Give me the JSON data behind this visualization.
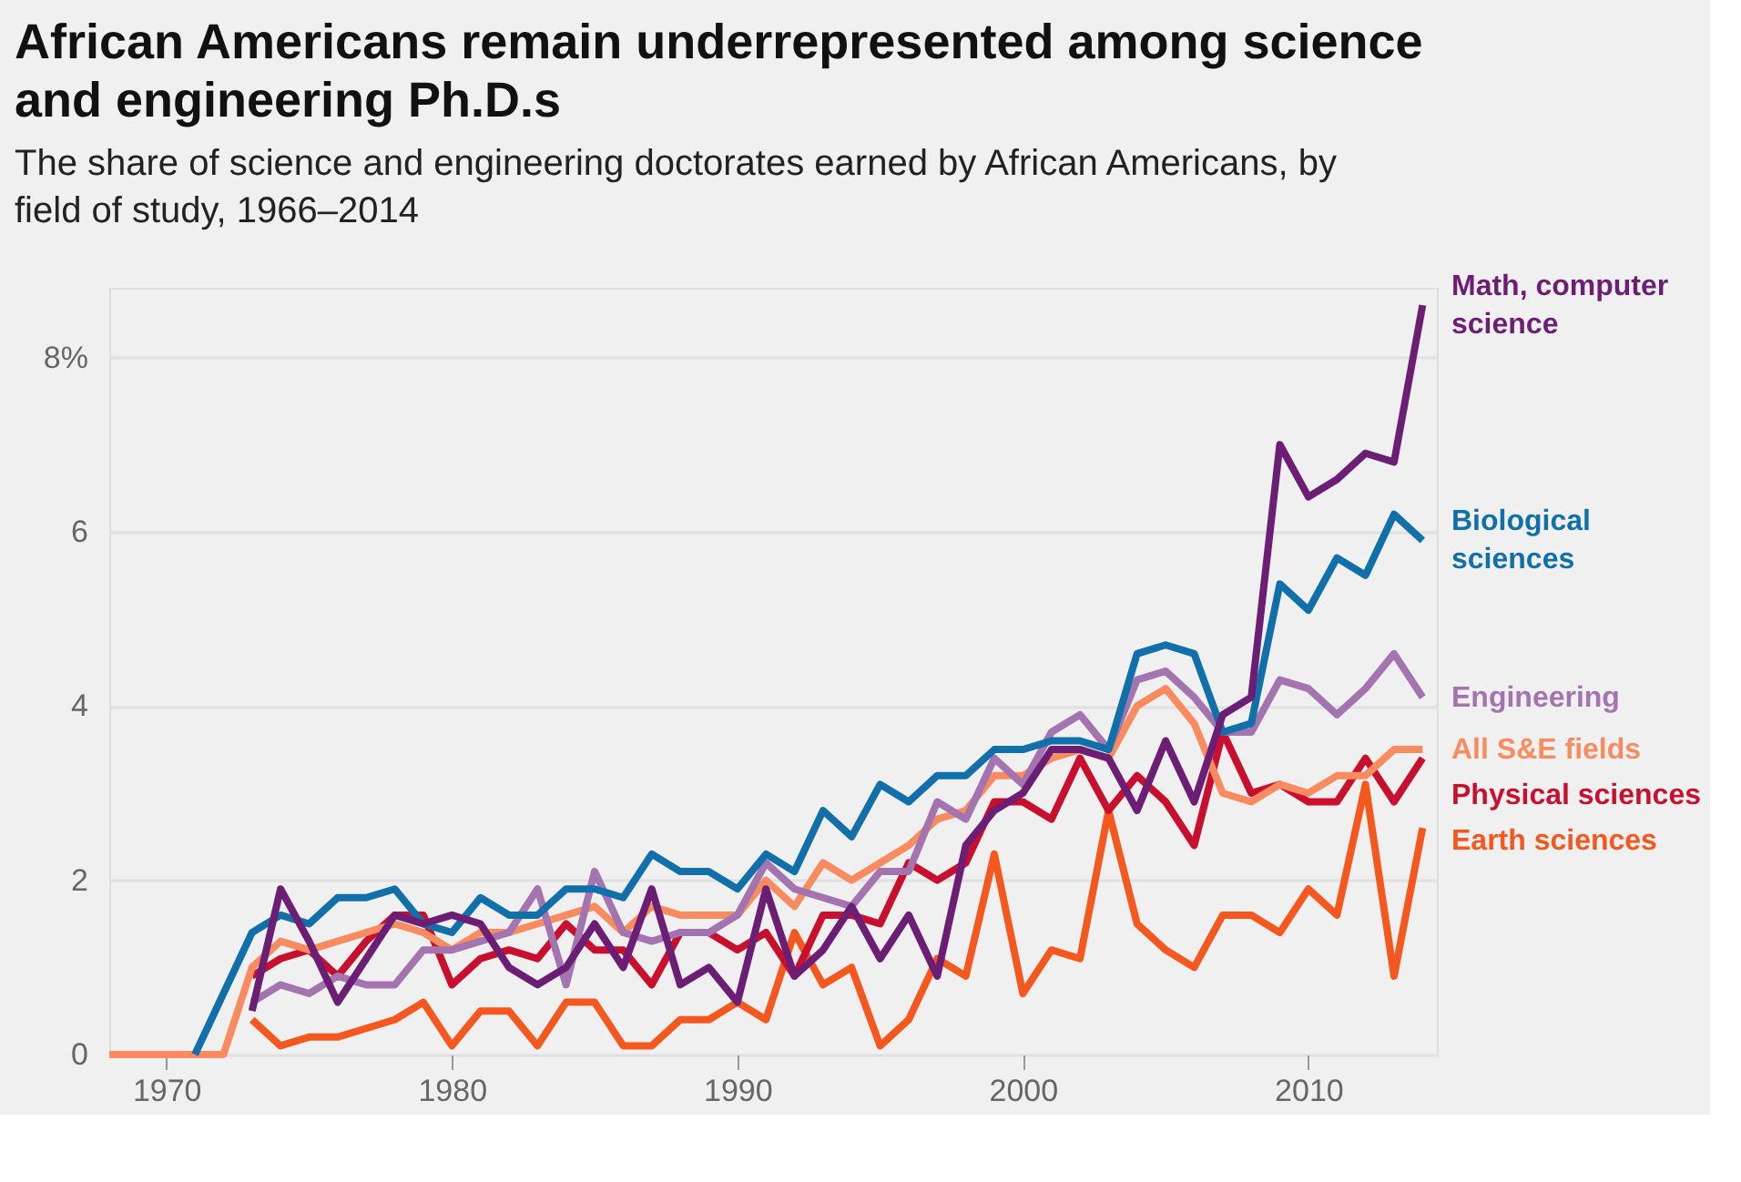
{
  "chart_data": {
    "type": "line",
    "title": "African Americans remain underrepresented among science and engineering Ph.D.s",
    "subtitle": "The share of science and engineering doctorates earned by African Americans, by field of study, 1966–2014",
    "x": [
      1968,
      1969,
      1970,
      1971,
      1972,
      1973,
      1974,
      1975,
      1976,
      1977,
      1978,
      1979,
      1980,
      1981,
      1982,
      1983,
      1984,
      1985,
      1986,
      1987,
      1988,
      1989,
      1990,
      1991,
      1992,
      1993,
      1994,
      1995,
      1996,
      1997,
      1998,
      1999,
      2000,
      2001,
      2002,
      2003,
      2004,
      2005,
      2006,
      2007,
      2008,
      2009,
      2010,
      2011,
      2012,
      2013,
      2014
    ],
    "series": [
      {
        "name": "Math, computer science",
        "color": "#6b1e74",
        "values": [
          null,
          null,
          null,
          null,
          null,
          0.5,
          1.9,
          1.3,
          0.6,
          1.1,
          1.6,
          1.5,
          1.6,
          1.5,
          1.0,
          0.8,
          1.0,
          1.5,
          1.0,
          1.9,
          0.8,
          1.0,
          0.6,
          1.9,
          0.9,
          1.2,
          1.7,
          1.1,
          1.6,
          0.9,
          2.4,
          2.8,
          3.0,
          3.5,
          3.5,
          3.4,
          2.8,
          3.6,
          2.9,
          3.9,
          4.1,
          7.0,
          6.4,
          6.6,
          6.9,
          6.8,
          8.6
        ]
      },
      {
        "name": "Biological sciences",
        "color": "#1170aa",
        "values": [
          null,
          null,
          null,
          0,
          0.7,
          1.4,
          1.6,
          1.5,
          1.8,
          1.8,
          1.9,
          1.5,
          1.4,
          1.8,
          1.6,
          1.6,
          1.9,
          1.9,
          1.8,
          2.3,
          2.1,
          2.1,
          1.9,
          2.3,
          2.1,
          2.8,
          2.5,
          3.1,
          2.9,
          3.2,
          3.2,
          3.5,
          3.5,
          3.6,
          3.6,
          3.5,
          4.6,
          4.7,
          4.6,
          3.7,
          3.8,
          5.4,
          5.1,
          5.7,
          5.5,
          6.2,
          5.9
        ]
      },
      {
        "name": "Engineering",
        "color": "#a374b0",
        "values": [
          null,
          null,
          null,
          null,
          null,
          0.6,
          0.8,
          0.7,
          0.9,
          0.8,
          0.8,
          1.2,
          1.2,
          1.3,
          1.4,
          1.9,
          0.8,
          2.1,
          1.4,
          1.3,
          1.4,
          1.4,
          1.6,
          2.2,
          1.9,
          1.8,
          1.7,
          2.1,
          2.1,
          2.9,
          2.7,
          3.4,
          3.1,
          3.7,
          3.9,
          3.5,
          4.3,
          4.4,
          4.1,
          3.7,
          3.7,
          4.3,
          4.2,
          3.9,
          4.2,
          4.6,
          4.1
        ]
      },
      {
        "name": "All S&E fields",
        "color": "#f98b60",
        "values": [
          0,
          0,
          0,
          0,
          0,
          1.0,
          1.3,
          1.2,
          1.3,
          1.4,
          1.5,
          1.4,
          1.2,
          1.4,
          1.4,
          1.5,
          1.6,
          1.7,
          1.4,
          1.7,
          1.6,
          1.6,
          1.6,
          2.0,
          1.7,
          2.2,
          2.0,
          2.2,
          2.4,
          2.7,
          2.8,
          3.2,
          3.2,
          3.4,
          3.5,
          3.4,
          4.0,
          4.2,
          3.8,
          3.0,
          2.9,
          3.1,
          3.0,
          3.2,
          3.2,
          3.5,
          3.5
        ]
      },
      {
        "name": "Physical sciences",
        "color": "#c8102e",
        "values": [
          null,
          null,
          null,
          null,
          null,
          0.9,
          1.1,
          1.2,
          0.9,
          1.3,
          1.6,
          1.6,
          0.8,
          1.1,
          1.2,
          1.1,
          1.5,
          1.2,
          1.2,
          0.8,
          1.4,
          1.4,
          1.2,
          1.4,
          0.9,
          1.6,
          1.6,
          1.5,
          2.2,
          2.0,
          2.2,
          2.9,
          2.9,
          2.7,
          3.4,
          2.8,
          3.2,
          2.9,
          2.4,
          3.7,
          3.0,
          3.1,
          2.9,
          2.9,
          3.4,
          2.9,
          3.4
        ]
      },
      {
        "name": "Earth sciences",
        "color": "#f4581f",
        "values": [
          null,
          null,
          null,
          null,
          null,
          0.4,
          0.1,
          0.2,
          0.2,
          0.3,
          0.4,
          0.6,
          0.1,
          0.5,
          0.5,
          0.1,
          0.6,
          0.6,
          0.1,
          0.1,
          0.4,
          0.4,
          0.6,
          0.4,
          1.4,
          0.8,
          1.0,
          0.1,
          0.4,
          1.1,
          0.9,
          2.3,
          0.7,
          1.2,
          1.1,
          2.8,
          1.5,
          1.2,
          1.0,
          1.6,
          1.6,
          1.4,
          1.9,
          1.6,
          3.1,
          0.9,
          2.6
        ]
      }
    ],
    "xlim": [
      1968,
      2014.5
    ],
    "xticks": [
      1970,
      1980,
      1990,
      2000,
      2010
    ],
    "ylim": [
      0,
      8.8
    ],
    "yticks": [
      0,
      2,
      4,
      6,
      {
        "value": 8,
        "label": "8%"
      }
    ],
    "grid": "y",
    "line_style": "solid",
    "marker": "none"
  }
}
